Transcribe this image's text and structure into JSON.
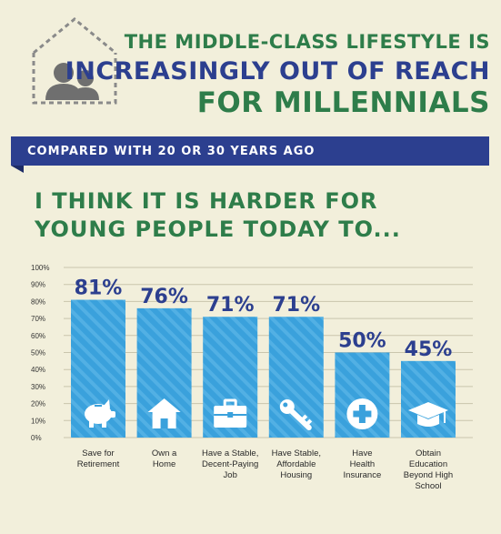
{
  "header": {
    "line1": "THE MIDDLE-CLASS LIFESTYLE IS",
    "line2": "INCREASINGLY OUT OF REACH",
    "line3": "FOR MILLENNIALS"
  },
  "banner": {
    "text": "COMPARED WITH 20 OR 30 YEARS AGO"
  },
  "question": "I THINK IT IS HARDER FOR YOUNG PEOPLE TODAY TO...",
  "colors": {
    "green": "#2e7d4a",
    "navy": "#2c3f8f",
    "bar": "#3aa1dc",
    "background": "#f2efdb"
  },
  "chart_data": {
    "type": "bar",
    "title": "",
    "xlabel": "",
    "ylabel": "",
    "ylim": [
      0,
      100
    ],
    "y_ticks": [
      "0%",
      "10%",
      "20%",
      "30%",
      "40%",
      "50%",
      "60%",
      "70%",
      "80%",
      "90%",
      "100%"
    ],
    "grid": true,
    "categories": [
      [
        "Save for",
        "Retirement"
      ],
      [
        "Own a",
        "Home"
      ],
      [
        "Have a Stable,",
        "Decent-Paying",
        "Job"
      ],
      [
        "Have Stable,",
        "Affordable",
        "Housing"
      ],
      [
        "Have",
        "Health",
        "Insurance"
      ],
      [
        "Obtain",
        "Education",
        "Beyond High",
        "School"
      ]
    ],
    "values": [
      81,
      76,
      71,
      71,
      50,
      45
    ],
    "data_labels": [
      "81%",
      "76%",
      "71%",
      "71%",
      "50%",
      "45%"
    ],
    "icons": [
      "piggy-bank-icon",
      "house-icon",
      "briefcase-icon",
      "key-icon",
      "medical-cross-icon",
      "graduation-cap-icon"
    ]
  }
}
